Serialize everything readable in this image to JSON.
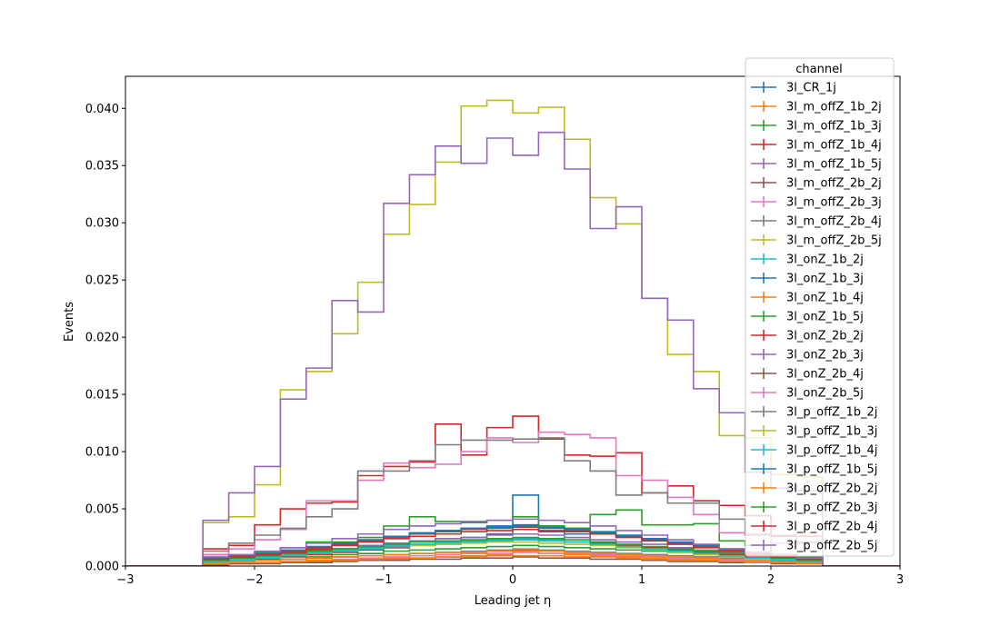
{
  "chart_data": {
    "type": "line",
    "title": "",
    "xlabel": "Leading jet  η",
    "ylabel": "Events",
    "xlim": [
      -3,
      3
    ],
    "ylim": [
      0,
      0.0428
    ],
    "xticks": [
      -3,
      -2,
      -1,
      0,
      1,
      2,
      3
    ],
    "xtick_labels": [
      "−3",
      "−2",
      "−1",
      "0",
      "1",
      "2",
      "3"
    ],
    "yticks": [
      0,
      0.005,
      0.01,
      0.015,
      0.02,
      0.025,
      0.03,
      0.035,
      0.04
    ],
    "ytick_labels": [
      "0.000",
      "0.005",
      "0.010",
      "0.015",
      "0.020",
      "0.025",
      "0.030",
      "0.035",
      "0.040"
    ],
    "bin_edges": [
      -3.0,
      -2.8,
      -2.6,
      -2.4,
      -2.2,
      -2.0,
      -1.8,
      -1.6,
      -1.4,
      -1.2,
      -1.0,
      -0.8,
      -0.6,
      -0.4,
      -0.2,
      0.0,
      0.2,
      0.4,
      0.6,
      0.8,
      1.0,
      1.2,
      1.4,
      1.6,
      1.8,
      2.0,
      2.2,
      2.4,
      2.6,
      2.8,
      3.0
    ],
    "grid": false,
    "legend": {
      "title": "channel",
      "placement": "top-right"
    },
    "series": [
      {
        "name": "3l_CR_1j",
        "color": "#1f77b4",
        "values": [
          0,
          0,
          0,
          0.001,
          0.0009,
          0.001,
          0.0012,
          0.0014,
          0.0015,
          0.0016,
          0.002,
          0.0022,
          0.0024,
          0.0025,
          0.0028,
          0.0062,
          0.003,
          0.0028,
          0.0021,
          0.0018,
          0.0016,
          0.0015,
          0.0013,
          0.0012,
          0.001,
          0.0008,
          0.0007,
          0,
          0,
          0
        ]
      },
      {
        "name": "3l_m_offZ_1b_2j",
        "color": "#ff7f0e",
        "values": [
          0,
          0,
          0,
          0.0002,
          0.0002,
          0.0003,
          0.0003,
          0.0004,
          0.0005,
          0.0006,
          0.0006,
          0.0007,
          0.0008,
          0.0009,
          0.001,
          0.0015,
          0.0011,
          0.001,
          0.0009,
          0.0008,
          0.0007,
          0.0006,
          0.0005,
          0.0004,
          0.0004,
          0.0003,
          0.0002,
          0,
          0,
          0
        ]
      },
      {
        "name": "3l_m_offZ_1b_3j",
        "color": "#2ca02c",
        "values": [
          0,
          0,
          0,
          0.0003,
          0.0004,
          0.0005,
          0.0006,
          0.0008,
          0.001,
          0.0011,
          0.0013,
          0.0014,
          0.0015,
          0.0016,
          0.0017,
          0.0018,
          0.0017,
          0.0016,
          0.0015,
          0.0014,
          0.0013,
          0.0012,
          0.001,
          0.0009,
          0.0008,
          0.0006,
          0.0005,
          0,
          0,
          0
        ]
      },
      {
        "name": "3l_m_offZ_1b_4j",
        "color": "#d62728",
        "values": [
          0,
          0,
          0,
          0.0004,
          0.0005,
          0.0006,
          0.0008,
          0.001,
          0.0012,
          0.0014,
          0.0016,
          0.0018,
          0.0019,
          0.0021,
          0.0022,
          0.0023,
          0.0022,
          0.0021,
          0.002,
          0.0018,
          0.0016,
          0.0014,
          0.0012,
          0.001,
          0.0008,
          0.0007,
          0.0005,
          0,
          0,
          0
        ]
      },
      {
        "name": "3l_m_offZ_1b_5j",
        "color": "#9467bd",
        "values": [
          0,
          0,
          0,
          0.0005,
          0.0006,
          0.0008,
          0.001,
          0.0013,
          0.0015,
          0.0018,
          0.002,
          0.0022,
          0.0024,
          0.0025,
          0.0027,
          0.0028,
          0.0027,
          0.0025,
          0.0023,
          0.0021,
          0.0019,
          0.0016,
          0.0014,
          0.0012,
          0.001,
          0.0008,
          0.0006,
          0,
          0,
          0
        ]
      },
      {
        "name": "3l_m_offZ_2b_2j",
        "color": "#8c564b",
        "values": [
          0,
          0,
          0,
          0.0001,
          0.0002,
          0.0002,
          0.0003,
          0.0003,
          0.0004,
          0.0005,
          0.0005,
          0.0006,
          0.0006,
          0.0007,
          0.0007,
          0.0008,
          0.0007,
          0.0007,
          0.0006,
          0.0006,
          0.0005,
          0.0004,
          0.0004,
          0.0003,
          0.0003,
          0.0002,
          0.0002,
          0,
          0,
          0
        ]
      },
      {
        "name": "3l_m_offZ_2b_3j",
        "color": "#e377c2",
        "values": [
          0,
          0,
          0,
          0.0002,
          0.0003,
          0.0003,
          0.0004,
          0.0005,
          0.0006,
          0.0007,
          0.0008,
          0.0009,
          0.001,
          0.0011,
          0.0011,
          0.0012,
          0.0011,
          0.0011,
          0.001,
          0.0009,
          0.0008,
          0.0007,
          0.0006,
          0.0005,
          0.0004,
          0.0003,
          0.0003,
          0,
          0,
          0
        ]
      },
      {
        "name": "3l_m_offZ_2b_4j",
        "color": "#7f7f7f",
        "values": [
          0,
          0,
          0,
          0.0003,
          0.0004,
          0.0005,
          0.0006,
          0.0007,
          0.0008,
          0.0009,
          0.001,
          0.0011,
          0.0012,
          0.0013,
          0.0014,
          0.0014,
          0.0014,
          0.0013,
          0.0012,
          0.0011,
          0.001,
          0.0009,
          0.0008,
          0.0007,
          0.0006,
          0.0005,
          0.0004,
          0,
          0,
          0
        ]
      },
      {
        "name": "3l_m_offZ_2b_5j",
        "color": "#bcbd22",
        "values": [
          0,
          0,
          0,
          0.0038,
          0.0043,
          0.0071,
          0.0154,
          0.017,
          0.0203,
          0.0248,
          0.029,
          0.0316,
          0.0353,
          0.0402,
          0.0407,
          0.0396,
          0.0401,
          0.0373,
          0.0322,
          0.0299,
          0.0234,
          0.0185,
          0.017,
          0.0114,
          0.0112,
          0.008,
          0.0078,
          0,
          0,
          0
        ]
      },
      {
        "name": "3l_onZ_1b_2j",
        "color": "#17becf",
        "values": [
          0,
          0,
          0,
          0.0005,
          0.0006,
          0.0008,
          0.001,
          0.0012,
          0.0014,
          0.0016,
          0.0018,
          0.0019,
          0.002,
          0.0021,
          0.0022,
          0.0023,
          0.0022,
          0.0021,
          0.0019,
          0.0017,
          0.0015,
          0.0013,
          0.0011,
          0.0009,
          0.0007,
          0.0006,
          0.0004,
          0,
          0,
          0
        ]
      },
      {
        "name": "3l_onZ_1b_3j",
        "color": "#1f77b4",
        "values": [
          0,
          0,
          0,
          0.0007,
          0.0008,
          0.001,
          0.0013,
          0.0016,
          0.0019,
          0.0022,
          0.0025,
          0.0028,
          0.0031,
          0.0033,
          0.0035,
          0.0036,
          0.0035,
          0.0033,
          0.003,
          0.0027,
          0.0024,
          0.0021,
          0.0018,
          0.0015,
          0.0012,
          0.0009,
          0.0007,
          0,
          0,
          0
        ]
      },
      {
        "name": "3l_onZ_1b_4j",
        "color": "#ff7f0e",
        "values": [
          0,
          0,
          0,
          0.0003,
          0.0004,
          0.0005,
          0.0006,
          0.0007,
          0.0008,
          0.0009,
          0.001,
          0.0011,
          0.0012,
          0.0012,
          0.0013,
          0.0013,
          0.0013,
          0.0012,
          0.0011,
          0.001,
          0.0009,
          0.0008,
          0.0007,
          0.0006,
          0.0005,
          0.0004,
          0.0003,
          0,
          0,
          0
        ]
      },
      {
        "name": "3l_onZ_1b_5j",
        "color": "#2ca02c",
        "values": [
          0,
          0,
          0,
          0.0005,
          0.0008,
          0.0012,
          0.0016,
          0.0021,
          0.0021,
          0.0025,
          0.0035,
          0.0043,
          0.0039,
          0.0038,
          0.004,
          0.0043,
          0.0035,
          0.0033,
          0.0045,
          0.0049,
          0.0036,
          0.0036,
          0.0037,
          0.0022,
          0.0018,
          0.001,
          0.0008,
          0,
          0,
          0
        ]
      },
      {
        "name": "3l_onZ_2b_2j",
        "color": "#d62728",
        "values": [
          0,
          0,
          0,
          0.0015,
          0.0018,
          0.0036,
          0.005,
          0.0055,
          0.0056,
          0.0079,
          0.0087,
          0.0091,
          0.0124,
          0.0097,
          0.0121,
          0.0131,
          0.0111,
          0.0097,
          0.0096,
          0.0099,
          0.0064,
          0.007,
          0.0057,
          0.0053,
          0.0044,
          0.0026,
          0.0026,
          0,
          0,
          0
        ]
      },
      {
        "name": "3l_onZ_2b_3j",
        "color": "#9467bd",
        "values": [
          0,
          0,
          0,
          0.004,
          0.0064,
          0.0087,
          0.0146,
          0.0173,
          0.0232,
          0.0222,
          0.0317,
          0.0342,
          0.0367,
          0.0352,
          0.0374,
          0.0359,
          0.0379,
          0.0347,
          0.0295,
          0.0314,
          0.0234,
          0.0215,
          0.0155,
          0.0134,
          0.0082,
          0.0068,
          0.0066,
          0,
          0,
          0
        ]
      },
      {
        "name": "3l_onZ_2b_4j",
        "color": "#8c564b",
        "values": [
          0,
          0,
          0,
          0.0006,
          0.0008,
          0.001,
          0.0013,
          0.0016,
          0.0019,
          0.0022,
          0.0025,
          0.0028,
          0.003,
          0.0032,
          0.0033,
          0.0034,
          0.0033,
          0.0031,
          0.0029,
          0.0026,
          0.0023,
          0.002,
          0.0017,
          0.0014,
          0.0011,
          0.0008,
          0.0006,
          0,
          0,
          0
        ]
      },
      {
        "name": "3l_onZ_2b_5j",
        "color": "#e377c2",
        "values": [
          0,
          0,
          0,
          0.001,
          0.0015,
          0.0023,
          0.0032,
          0.0057,
          0.0057,
          0.0075,
          0.009,
          0.0086,
          0.0089,
          0.01,
          0.0112,
          0.0108,
          0.0117,
          0.0115,
          0.0112,
          0.0079,
          0.0075,
          0.006,
          0.0045,
          0.0029,
          0.0028,
          0.002,
          0.002,
          0,
          0,
          0
        ]
      },
      {
        "name": "3l_p_offZ_1b_2j",
        "color": "#7f7f7f",
        "values": [
          0,
          0,
          0,
          0.0013,
          0.002,
          0.0027,
          0.0033,
          0.0043,
          0.005,
          0.0083,
          0.0083,
          0.0092,
          0.0106,
          0.011,
          0.011,
          0.0111,
          0.0112,
          0.0092,
          0.0083,
          0.0062,
          0.0064,
          0.0055,
          0.0055,
          0.0041,
          0.0027,
          0.0027,
          0.0021,
          0,
          0,
          0
        ]
      },
      {
        "name": "3l_p_offZ_1b_3j",
        "color": "#bcbd22",
        "values": [
          0,
          0,
          0,
          0.0004,
          0.0005,
          0.0007,
          0.0009,
          0.0011,
          0.0013,
          0.0015,
          0.0017,
          0.0018,
          0.0019,
          0.002,
          0.0021,
          0.0021,
          0.002,
          0.0019,
          0.0018,
          0.0016,
          0.0014,
          0.0012,
          0.001,
          0.0008,
          0.0006,
          0.0005,
          0.0004,
          0,
          0,
          0
        ]
      },
      {
        "name": "3l_p_offZ_1b_4j",
        "color": "#17becf",
        "values": [
          0,
          0,
          0,
          0.0004,
          0.0005,
          0.0007,
          0.0009,
          0.0011,
          0.0013,
          0.0015,
          0.0017,
          0.0019,
          0.0021,
          0.0022,
          0.0023,
          0.0024,
          0.0023,
          0.0021,
          0.0019,
          0.0017,
          0.0015,
          0.0013,
          0.0011,
          0.0009,
          0.0007,
          0.0005,
          0.0004,
          0,
          0,
          0
        ]
      },
      {
        "name": "3l_p_offZ_1b_5j",
        "color": "#1f77b4",
        "values": [
          0,
          0,
          0,
          0.0006,
          0.0008,
          0.0011,
          0.0014,
          0.0017,
          0.002,
          0.0023,
          0.0026,
          0.0029,
          0.0031,
          0.0033,
          0.0034,
          0.0035,
          0.0034,
          0.0032,
          0.0029,
          0.0026,
          0.0023,
          0.002,
          0.0017,
          0.0014,
          0.0011,
          0.0008,
          0.0006,
          0,
          0,
          0
        ]
      },
      {
        "name": "3l_p_offZ_2b_2j",
        "color": "#ff7f0e",
        "values": [
          0,
          0,
          0,
          0.0002,
          0.0003,
          0.0003,
          0.0004,
          0.0005,
          0.0005,
          0.0006,
          0.0007,
          0.0007,
          0.0008,
          0.0008,
          0.0009,
          0.0009,
          0.0009,
          0.0008,
          0.0008,
          0.0007,
          0.0006,
          0.0005,
          0.0005,
          0.0004,
          0.0003,
          0.0003,
          0.0002,
          0,
          0,
          0
        ]
      },
      {
        "name": "3l_p_offZ_2b_3j",
        "color": "#2ca02c",
        "values": [
          0,
          0,
          0,
          0.0005,
          0.0007,
          0.0009,
          0.0011,
          0.0013,
          0.0015,
          0.0017,
          0.0019,
          0.0021,
          0.0022,
          0.0023,
          0.0024,
          0.0025,
          0.0024,
          0.0023,
          0.0021,
          0.0019,
          0.0017,
          0.0015,
          0.0013,
          0.0011,
          0.0009,
          0.0007,
          0.0005,
          0,
          0,
          0
        ]
      },
      {
        "name": "3l_p_offZ_2b_4j",
        "color": "#d62728",
        "values": [
          0,
          0,
          0,
          0.0006,
          0.0008,
          0.001,
          0.0012,
          0.0015,
          0.0018,
          0.0021,
          0.0024,
          0.0026,
          0.0028,
          0.003,
          0.0031,
          0.0032,
          0.0031,
          0.003,
          0.0028,
          0.0025,
          0.0022,
          0.0019,
          0.0016,
          0.0013,
          0.001,
          0.0008,
          0.0006,
          0,
          0,
          0
        ]
      },
      {
        "name": "3l_p_offZ_2b_5j",
        "color": "#9467bd",
        "values": [
          0,
          0,
          0,
          0.0008,
          0.001,
          0.0013,
          0.0016,
          0.002,
          0.0024,
          0.0028,
          0.0032,
          0.0035,
          0.0037,
          0.0039,
          0.004,
          0.0041,
          0.004,
          0.0038,
          0.0035,
          0.0031,
          0.0027,
          0.0023,
          0.0019,
          0.0015,
          0.0012,
          0.0009,
          0.0007,
          0,
          0,
          0
        ]
      }
    ]
  }
}
